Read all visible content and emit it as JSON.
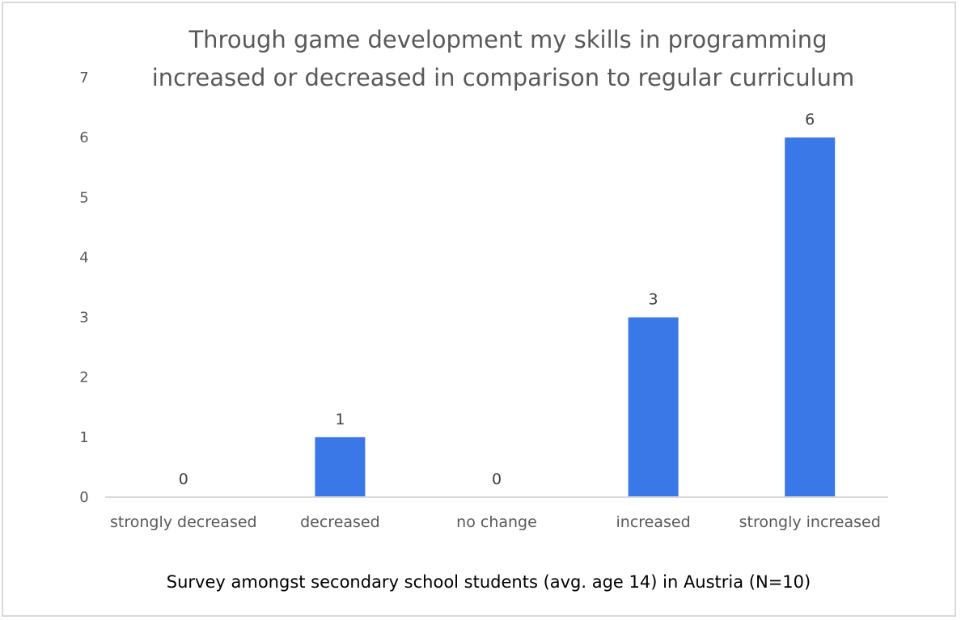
{
  "chart_data": {
    "type": "bar",
    "title_lines": [
      "Through game development my skills in programming",
      "increased or decreased in comparison to regular curriculum"
    ],
    "categories": [
      "strongly decreased",
      "decreased",
      "no change",
      "increased",
      "strongly increased"
    ],
    "values": [
      0,
      1,
      0,
      3,
      6
    ],
    "data_labels": [
      "0",
      "1",
      "0",
      "3",
      "6"
    ],
    "ylim": [
      0,
      7
    ],
    "yticks": [
      "0",
      "1",
      "2",
      "3",
      "4",
      "5",
      "6",
      "7"
    ],
    "xlabel": "Survey amongst secondary school students (avg. age 14) in Austria (N=10)",
    "ylabel": "",
    "grid": false,
    "bar_color": "#3a78e8"
  }
}
